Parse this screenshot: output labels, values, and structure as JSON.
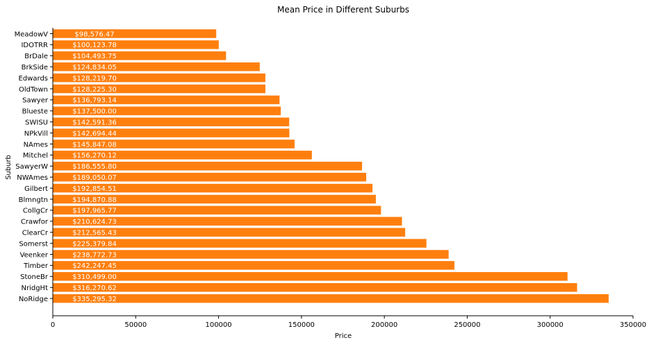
{
  "chart_data": {
    "type": "bar",
    "orientation": "horizontal",
    "title": "Mean Price in Different Suburbs",
    "xlabel": "Price",
    "ylabel": "Suburb",
    "xlim": [
      0,
      350000
    ],
    "xticks": [
      0,
      50000,
      100000,
      150000,
      200000,
      250000,
      300000,
      350000
    ],
    "xtick_labels": [
      "0",
      "50000",
      "100000",
      "150000",
      "200000",
      "250000",
      "300000",
      "350000"
    ],
    "bar_color": "#ff7f0e",
    "label_color": "#ffffff",
    "grid": false,
    "categories": [
      "MeadowV",
      "IDOTRR",
      "BrDale",
      "BrkSide",
      "Edwards",
      "OldTown",
      "Sawyer",
      "Blueste",
      "SWISU",
      "NPkVill",
      "NAmes",
      "Mitchel",
      "SawyerW",
      "NWAmes",
      "Gilbert",
      "Blmngtn",
      "CollgCr",
      "Crawfor",
      "ClearCr",
      "Somerst",
      "Veenker",
      "Timber",
      "StoneBr",
      "NridgHt",
      "NoRidge"
    ],
    "values": [
      98576.47,
      100123.78,
      104493.75,
      124834.05,
      128219.7,
      128225.3,
      136793.14,
      137500.0,
      142591.36,
      142694.44,
      145847.08,
      156270.12,
      186555.8,
      189050.07,
      192854.51,
      194870.88,
      197965.77,
      210624.73,
      212565.43,
      225379.84,
      238772.73,
      242247.45,
      310499.0,
      316270.62,
      335295.32
    ],
    "data_labels": [
      "$98,576.47",
      "$100,123.78",
      "$104,493.75",
      "$124,834.05",
      "$128,219.70",
      "$128,225.30",
      "$136,793.14",
      "$137,500.00",
      "$142,591.36",
      "$142,694.44",
      "$145,847.08",
      "$156,270.12",
      "$186,555.80",
      "$189,050.07",
      "$192,854.51",
      "$194,870.88",
      "$197,965.77",
      "$210,624.73",
      "$212,565.43",
      "$225,379.84",
      "$238,772.73",
      "$242,247.45",
      "$310,499.00",
      "$316,270.62",
      "$335,295.32"
    ]
  }
}
